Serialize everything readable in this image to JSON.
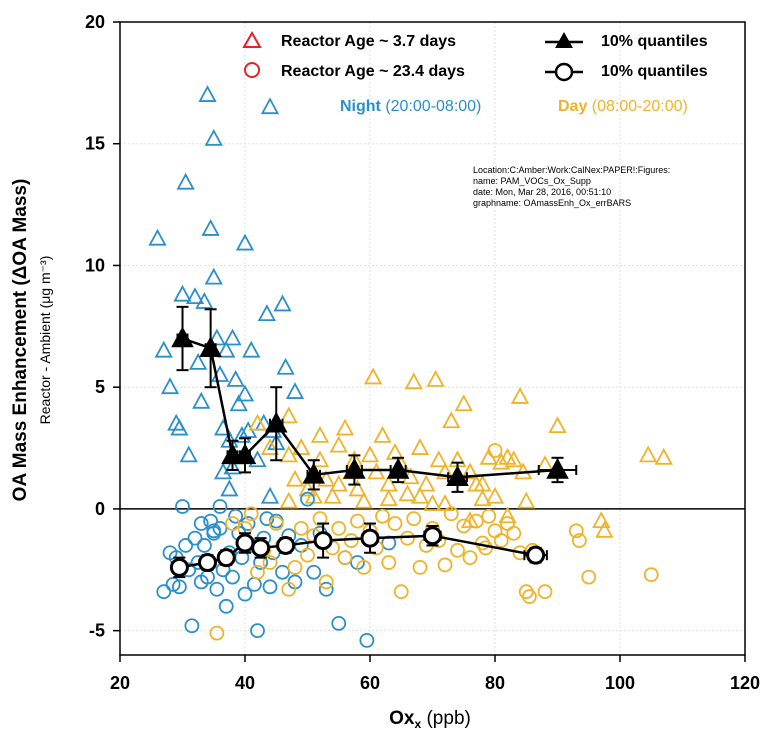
{
  "chart_data": {
    "type": "scatter",
    "xlabel": "Ox",
    "xlabel_sub": "x",
    "xlabel_unit": " (ppb)",
    "ylabel": "OA Mass Enhancement (ΔOA Mass)",
    "ylabel2": "Reactor - Ambient  (μg m⁻³)",
    "xlim": [
      20,
      120
    ],
    "ylim": [
      -6,
      20
    ],
    "x_ticks": [
      20,
      40,
      60,
      80,
      100,
      120
    ],
    "y_ticks": [
      -5,
      0,
      5,
      10,
      15,
      20
    ],
    "grid": true,
    "legend": {
      "position": "top-right",
      "items": [
        {
          "label": "Reactor Age ~ 3.7 days",
          "marker": "open-triangle",
          "color": "#e8202a"
        },
        {
          "label": "Reactor Age ~ 23.4 days",
          "marker": "open-circle",
          "color": "#e8202a"
        },
        {
          "label": "10% quantiles",
          "marker": "filled-triangle-line",
          "color": "#000000"
        },
        {
          "label": "10% quantiles",
          "marker": "open-circle-line",
          "color": "#000000"
        }
      ]
    },
    "period_labels": [
      {
        "bold": "Night",
        "range": " (20:00-08:00)",
        "color": "#2b8fcc"
      },
      {
        "bold": "Day",
        "range": " (08:00-20:00)",
        "color": "#f0b328"
      }
    ],
    "info_text": [
      "Location:C:Amber:Work:CalNex:PAPER!:Figures:",
      "name: PAM_VOCs_Ox_Supp",
      "date: Mon, Mar 28, 2016, 00:51:10",
      "graphname: OAmassEnh_Ox_errBARS"
    ],
    "colors": {
      "night": "#2b8fcc",
      "day": "#f0b328",
      "quantile": "#000000"
    },
    "series": [
      {
        "name": "Reactor Age ~ 3.7 days",
        "period": "night",
        "marker": "triangle",
        "points": [
          [
            26,
            11.1
          ],
          [
            27,
            6.5
          ],
          [
            28,
            5
          ],
          [
            29,
            3.5
          ],
          [
            29.5,
            3.3
          ],
          [
            30,
            8.8
          ],
          [
            30.5,
            13.4
          ],
          [
            31,
            2.2
          ],
          [
            32,
            8.7
          ],
          [
            32.5,
            6
          ],
          [
            33,
            4.4
          ],
          [
            33.5,
            8.5
          ],
          [
            34,
            17
          ],
          [
            34.5,
            11.5
          ],
          [
            35,
            15.2
          ],
          [
            35,
            9.5
          ],
          [
            35.5,
            7
          ],
          [
            36,
            5.5
          ],
          [
            36.5,
            3.3
          ],
          [
            37,
            6.5
          ],
          [
            37.5,
            2.8
          ],
          [
            38,
            7
          ],
          [
            38,
            1.7
          ],
          [
            38.5,
            5.3
          ],
          [
            39,
            4.3
          ],
          [
            39.5,
            3
          ],
          [
            40,
            10.9
          ],
          [
            40,
            4.7
          ],
          [
            41,
            6.5
          ],
          [
            42,
            2
          ],
          [
            43,
            3.5
          ],
          [
            43.5,
            8
          ],
          [
            44,
            16.5
          ],
          [
            44.5,
            3.2
          ],
          [
            45,
            2.7
          ],
          [
            46,
            8.4
          ],
          [
            46.5,
            5.8
          ],
          [
            44,
            0.5
          ],
          [
            37.5,
            0.8
          ],
          [
            36.5,
            1.5
          ],
          [
            40.5,
            3.2
          ],
          [
            48,
            4.8
          ]
        ]
      },
      {
        "name": "Reactor Age ~ 3.7 days",
        "period": "day",
        "marker": "triangle",
        "points": [
          [
            42,
            3.5
          ],
          [
            44,
            2.5
          ],
          [
            47,
            3.8
          ],
          [
            47,
            2.2
          ],
          [
            48,
            1.2
          ],
          [
            49,
            2.5
          ],
          [
            50,
            0.8
          ],
          [
            51,
            0.5
          ],
          [
            52,
            2.0
          ],
          [
            53,
            1.2
          ],
          [
            54,
            0.5
          ],
          [
            55,
            2.6
          ],
          [
            56,
            3.3
          ],
          [
            57,
            1.5
          ],
          [
            57.5,
            2.0
          ],
          [
            58,
            0.8
          ],
          [
            59,
            0.3
          ],
          [
            60,
            2.2
          ],
          [
            60.5,
            5.4
          ],
          [
            61,
            1.5
          ],
          [
            62,
            3.0
          ],
          [
            63,
            1.0
          ],
          [
            64,
            2.3
          ],
          [
            65,
            1.8
          ],
          [
            66,
            0.6
          ],
          [
            66.5,
            1.3
          ],
          [
            67,
            5.2
          ],
          [
            68,
            2.5
          ],
          [
            69,
            1.0
          ],
          [
            70,
            0.2
          ],
          [
            70.5,
            5.3
          ],
          [
            71,
            2.0
          ],
          [
            72,
            1.5
          ],
          [
            73,
            3.6
          ],
          [
            74,
            2.0
          ],
          [
            75,
            4.3
          ],
          [
            76,
            1.5
          ],
          [
            77,
            1.0
          ],
          [
            78,
            1.0
          ],
          [
            79,
            2.1
          ],
          [
            80,
            0.5
          ],
          [
            81,
            1.9
          ],
          [
            82,
            2.1
          ],
          [
            83,
            2.0
          ],
          [
            84,
            4.6
          ],
          [
            84.5,
            1.5
          ],
          [
            85,
            0.3
          ],
          [
            88,
            1.8
          ],
          [
            90,
            3.4
          ],
          [
            104.5,
            2.2
          ],
          [
            107,
            2.1
          ],
          [
            47,
            0.3
          ],
          [
            52,
            3.0
          ],
          [
            55,
            1.0
          ],
          [
            63,
            0.4
          ],
          [
            68,
            0.5
          ],
          [
            72,
            0.2
          ],
          [
            76,
            -0.5
          ],
          [
            78,
            0.4
          ],
          [
            82,
            -0.3
          ],
          [
            97,
            -0.5
          ],
          [
            97.5,
            -0.9
          ]
        ]
      },
      {
        "name": "Reactor Age ~ 23.4 days",
        "period": "night",
        "marker": "circle",
        "points": [
          [
            27,
            -3.4
          ],
          [
            28,
            -1.8
          ],
          [
            28.5,
            -3.1
          ],
          [
            29,
            -2.0
          ],
          [
            29.5,
            -3.2
          ],
          [
            30,
            0.1
          ],
          [
            30.5,
            -1.5
          ],
          [
            31,
            -2.5
          ],
          [
            31.5,
            -4.8
          ],
          [
            32,
            -1.2
          ],
          [
            32.5,
            -2.2
          ],
          [
            33,
            -3.0
          ],
          [
            33.5,
            -1.5
          ],
          [
            34,
            -2.8
          ],
          [
            34.5,
            -0.5
          ],
          [
            35,
            -1.0
          ],
          [
            35.5,
            -3.3
          ],
          [
            36,
            -0.8
          ],
          [
            36.5,
            -2.5
          ],
          [
            37,
            -4.0
          ],
          [
            37.5,
            -1.8
          ],
          [
            38,
            -2.8
          ],
          [
            38.5,
            -0.3
          ],
          [
            39,
            -1.0
          ],
          [
            39.5,
            -2.0
          ],
          [
            40,
            -3.5
          ],
          [
            40.5,
            -0.6
          ],
          [
            41,
            -1.5
          ],
          [
            41.5,
            -3.1
          ],
          [
            42,
            -5.0
          ],
          [
            42.5,
            -2.2
          ],
          [
            43,
            -1.2
          ],
          [
            43.5,
            -0.4
          ],
          [
            44,
            -3.2
          ],
          [
            44.5,
            -1.8
          ],
          [
            45,
            -0.5
          ],
          [
            46,
            -2.6
          ],
          [
            47,
            -1.1
          ],
          [
            48,
            -3.0
          ],
          [
            49,
            -1.5
          ],
          [
            50,
            0.4
          ],
          [
            51,
            -2.6
          ],
          [
            52,
            -1.0
          ],
          [
            53,
            -3.3
          ],
          [
            55,
            -4.7
          ],
          [
            56,
            -2.0
          ],
          [
            58,
            -2.2
          ],
          [
            59.5,
            -5.4
          ],
          [
            63,
            -1.4
          ],
          [
            36,
            0.1
          ],
          [
            35,
            -0.9
          ],
          [
            33,
            -0.6
          ]
        ]
      },
      {
        "name": "Reactor Age ~ 23.4 days",
        "period": "day",
        "marker": "circle",
        "points": [
          [
            35.5,
            -5.1
          ],
          [
            38,
            -0.6
          ],
          [
            40,
            -0.8
          ],
          [
            41,
            -0.2
          ],
          [
            42,
            -2.6
          ],
          [
            43,
            -1.7
          ],
          [
            44,
            -2.2
          ],
          [
            45,
            -0.6
          ],
          [
            46,
            -1.5
          ],
          [
            47,
            -3.3
          ],
          [
            48,
            -2.4
          ],
          [
            49,
            -0.8
          ],
          [
            50,
            -1.9
          ],
          [
            51,
            -1.1
          ],
          [
            52,
            -0.4
          ],
          [
            53,
            -3.0
          ],
          [
            54,
            -1.6
          ],
          [
            55,
            -0.8
          ],
          [
            56,
            -2.0
          ],
          [
            57,
            -1.3
          ],
          [
            58,
            -0.5
          ],
          [
            59,
            -2.4
          ],
          [
            60,
            -0.9
          ],
          [
            61,
            -1.6
          ],
          [
            62,
            -0.3
          ],
          [
            63,
            -2.2
          ],
          [
            64,
            -0.6
          ],
          [
            65,
            -3.4
          ],
          [
            66,
            -1.2
          ],
          [
            67,
            -0.4
          ],
          [
            68,
            -2.4
          ],
          [
            69,
            -1.5
          ],
          [
            70,
            -0.8
          ],
          [
            71,
            -1.3
          ],
          [
            72,
            -2.3
          ],
          [
            73,
            -0.2
          ],
          [
            74,
            -1.7
          ],
          [
            75,
            -0.7
          ],
          [
            76,
            -2.0
          ],
          [
            77,
            -0.5
          ],
          [
            78,
            -1.4
          ],
          [
            79,
            -0.3
          ],
          [
            80,
            -0.9
          ],
          [
            80,
            2.4
          ],
          [
            81,
            -1.3
          ],
          [
            82,
            -0.6
          ],
          [
            83,
            -1.0
          ],
          [
            84,
            -1.8
          ],
          [
            85,
            -3.4
          ],
          [
            85.5,
            -3.6
          ],
          [
            88,
            -3.4
          ],
          [
            93,
            -0.9
          ],
          [
            93.5,
            -1.3
          ],
          [
            95,
            -2.8
          ],
          [
            105,
            -2.7
          ],
          [
            86,
            -1.7
          ],
          [
            78.5,
            -1.6
          ]
        ]
      },
      {
        "name": "10% quantiles",
        "marker": "filled-triangle-line",
        "points": [
          {
            "x": 30,
            "y": 7.0,
            "yerr": 1.3,
            "xerr": 0.8
          },
          {
            "x": 34.5,
            "y": 6.6,
            "yerr": 1.6,
            "xerr": 0.8
          },
          {
            "x": 38,
            "y": 2.2,
            "yerr": 0.6,
            "xerr": 0.8
          },
          {
            "x": 40,
            "y": 2.2,
            "yerr": 0.7,
            "xerr": 0.8
          },
          {
            "x": 45,
            "y": 3.5,
            "yerr": 1.5,
            "xerr": 1.0
          },
          {
            "x": 51,
            "y": 1.4,
            "yerr": 0.6,
            "xerr": 1.0
          },
          {
            "x": 57.5,
            "y": 1.6,
            "yerr": 0.6,
            "xerr": 1.2
          },
          {
            "x": 64.5,
            "y": 1.6,
            "yerr": 0.5,
            "xerr": 1.2
          },
          {
            "x": 74,
            "y": 1.3,
            "yerr": 0.6,
            "xerr": 1.5
          },
          {
            "x": 90,
            "y": 1.6,
            "yerr": 0.5,
            "xerr": 3.0
          }
        ]
      },
      {
        "name": "10% quantiles",
        "marker": "open-circle-line",
        "points": [
          {
            "x": 29.5,
            "y": -2.4,
            "yerr": 0.4,
            "xerr": 0.8
          },
          {
            "x": 34,
            "y": -2.2,
            "yerr": 0.3,
            "xerr": 0.8
          },
          {
            "x": 37,
            "y": -2.0,
            "yerr": 0.3,
            "xerr": 0.7
          },
          {
            "x": 40,
            "y": -1.4,
            "yerr": 0.4,
            "xerr": 0.8
          },
          {
            "x": 42.5,
            "y": -1.6,
            "yerr": 0.4,
            "xerr": 0.9
          },
          {
            "x": 46.5,
            "y": -1.5,
            "yerr": 0.3,
            "xerr": 1.0
          },
          {
            "x": 52.5,
            "y": -1.3,
            "yerr": 0.7,
            "xerr": 1.0
          },
          {
            "x": 60,
            "y": -1.2,
            "yerr": 0.6,
            "xerr": 1.2
          },
          {
            "x": 70,
            "y": -1.1,
            "yerr": 0.4,
            "xerr": 1.3
          },
          {
            "x": 86.5,
            "y": -1.9,
            "yerr": 0.3,
            "xerr": 1.8
          }
        ]
      }
    ]
  }
}
